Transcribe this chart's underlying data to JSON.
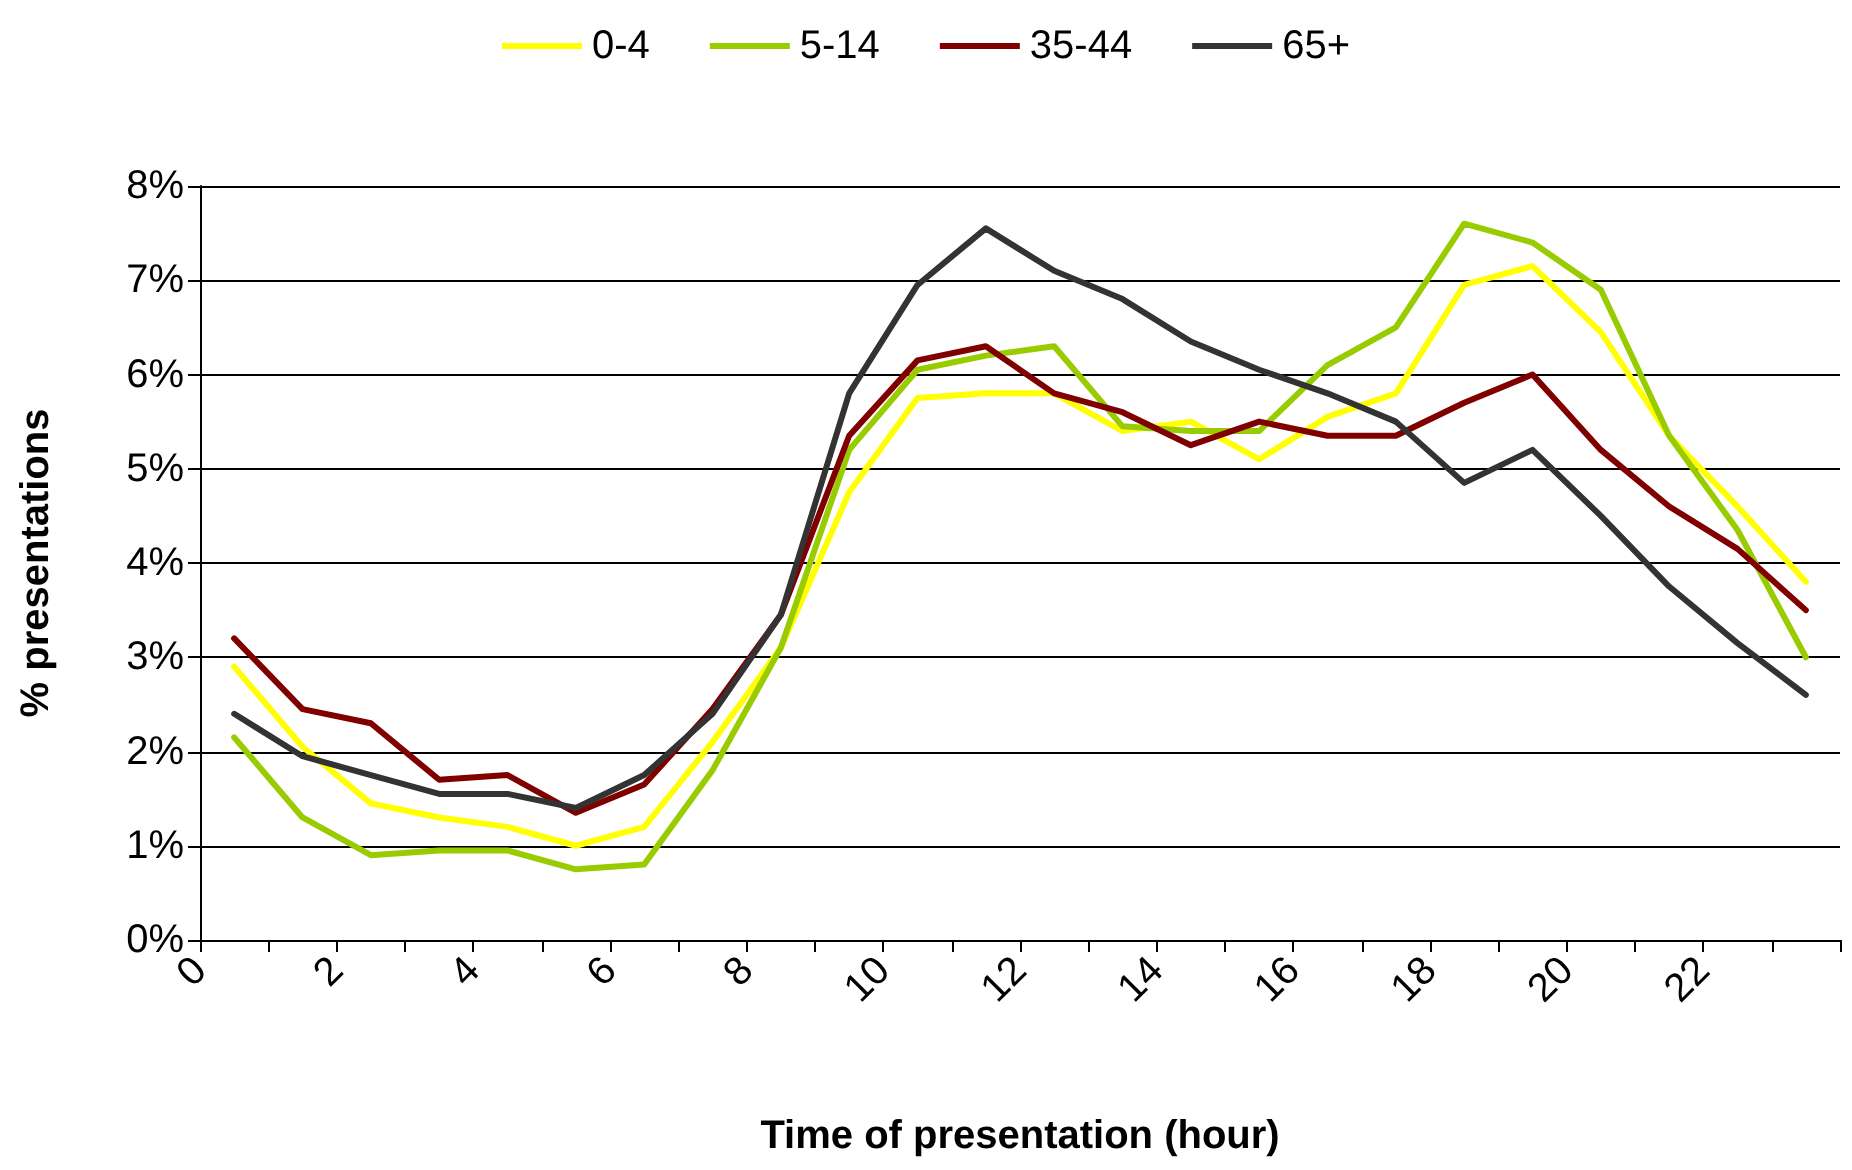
{
  "chart_data": {
    "type": "line",
    "xlabel": "Time of presentation (hour)",
    "ylabel": "% presentations",
    "x": [
      0.5,
      1.5,
      2.5,
      3.5,
      4.5,
      5.5,
      6.5,
      7.5,
      8.5,
      9.5,
      10.5,
      11.5,
      12.5,
      13.5,
      14.5,
      15.5,
      16.5,
      17.5,
      18.5,
      19.5,
      20.5,
      21.5,
      22.5,
      23.5
    ],
    "series": [
      {
        "name": "0-4",
        "color": "#ffff00",
        "values": [
          2.9,
          2.05,
          1.45,
          1.3,
          1.2,
          1.0,
          1.2,
          2.1,
          3.1,
          4.75,
          5.75,
          5.8,
          5.8,
          5.4,
          5.5,
          5.1,
          5.55,
          5.8,
          6.95,
          7.15,
          6.45,
          5.35,
          4.6,
          3.8
        ]
      },
      {
        "name": "5-14",
        "color": "#99cc00",
        "values": [
          2.15,
          1.3,
          0.9,
          0.95,
          0.95,
          0.75,
          0.8,
          1.8,
          3.1,
          5.2,
          6.05,
          6.2,
          6.3,
          5.45,
          5.4,
          5.4,
          6.1,
          6.5,
          7.6,
          7.4,
          6.9,
          5.35,
          4.35,
          3.0
        ]
      },
      {
        "name": "35-44",
        "color": "#800000",
        "values": [
          3.2,
          2.45,
          2.3,
          1.7,
          1.75,
          1.35,
          1.65,
          2.45,
          3.45,
          5.35,
          6.15,
          6.3,
          5.8,
          5.6,
          5.25,
          5.5,
          5.35,
          5.35,
          5.7,
          6.0,
          5.2,
          4.6,
          4.15,
          3.5
        ]
      },
      {
        "name": "65+",
        "color": "#333333",
        "values": [
          2.4,
          1.95,
          1.75,
          1.55,
          1.55,
          1.4,
          1.75,
          2.4,
          3.45,
          5.8,
          6.95,
          7.55,
          7.1,
          6.8,
          6.35,
          6.05,
          5.8,
          5.5,
          4.85,
          5.2,
          4.5,
          3.75,
          3.15,
          2.6
        ]
      }
    ],
    "xlim": [
      0,
      24
    ],
    "xticks": [
      0,
      {
        "value": 1,
        "label": null
      },
      2,
      {
        "value": 3,
        "label": null
      },
      4,
      {
        "value": 5,
        "label": null
      },
      6,
      {
        "value": 7,
        "label": null
      },
      8,
      {
        "value": 9,
        "label": null
      },
      10,
      {
        "value": 11,
        "label": null
      },
      12,
      {
        "value": 13,
        "label": null
      },
      14,
      {
        "value": 15,
        "label": null
      },
      16,
      {
        "value": 17,
        "label": null
      },
      18,
      {
        "value": 19,
        "label": null
      },
      20,
      {
        "value": 21,
        "label": null
      },
      22,
      {
        "value": 23,
        "label": null
      },
      {
        "value": 24,
        "label": null
      }
    ],
    "ylim": [
      0,
      8
    ],
    "yticks": [
      {
        "value": 0,
        "label": "0%"
      },
      {
        "value": 1,
        "label": "1%"
      },
      {
        "value": 2,
        "label": "2%"
      },
      {
        "value": 3,
        "label": "3%"
      },
      {
        "value": 4,
        "label": "4%"
      },
      {
        "value": 5,
        "label": "5%"
      },
      {
        "value": 6,
        "label": "6%"
      },
      {
        "value": 7,
        "label": "7%"
      },
      {
        "value": 8,
        "label": "8%"
      }
    ],
    "grid": "y",
    "legend": "top",
    "marker": "none",
    "line_style": "solid"
  }
}
